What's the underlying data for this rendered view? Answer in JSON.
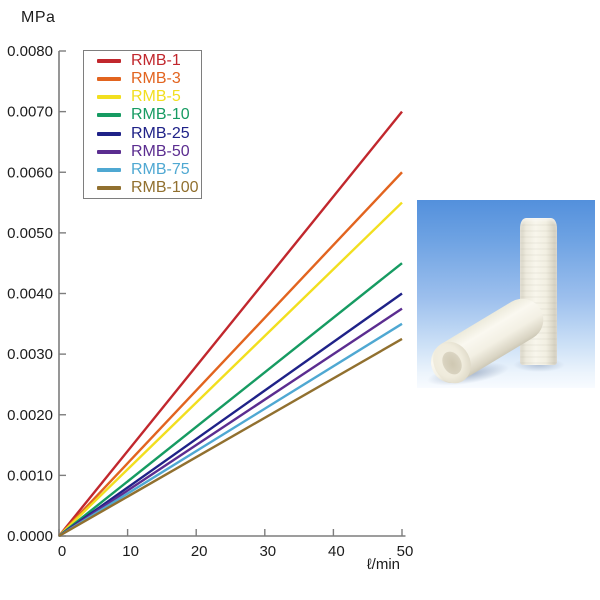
{
  "chart_data": {
    "type": "line",
    "title": "",
    "ylabel": "MPa",
    "xlabel": "ℓ/min",
    "xlim": [
      0,
      50
    ],
    "ylim": [
      0,
      0.008
    ],
    "x_ticks": [
      0,
      10,
      20,
      30,
      40,
      50
    ],
    "y_ticks": [
      "0.0000",
      "0.0010",
      "0.0020",
      "0.0030",
      "0.0040",
      "0.0050",
      "0.0060",
      "0.0070",
      "0.0080"
    ],
    "y_tick_values": [
      0,
      0.001,
      0.002,
      0.003,
      0.004,
      0.005,
      0.006,
      0.007,
      0.008
    ],
    "grid": false,
    "legend_position": "top-left-inside",
    "axis_color": "#7d7d7d",
    "tick_label_color": "#1c1c1c",
    "series": [
      {
        "name": "RMB-1",
        "color": "#c1272d",
        "x": [
          0,
          50
        ],
        "y": [
          0,
          0.007
        ]
      },
      {
        "name": "RMB-3",
        "color": "#e2641f",
        "x": [
          0,
          50
        ],
        "y": [
          0,
          0.006
        ]
      },
      {
        "name": "RMB-5",
        "color": "#f2df1f",
        "x": [
          0,
          50
        ],
        "y": [
          0,
          0.0055
        ]
      },
      {
        "name": "RMB-10",
        "color": "#169b62",
        "x": [
          0,
          50
        ],
        "y": [
          0,
          0.0045
        ]
      },
      {
        "name": "RMB-25",
        "color": "#1f2288",
        "x": [
          0,
          50
        ],
        "y": [
          0,
          0.004
        ]
      },
      {
        "name": "RMB-50",
        "color": "#5b2d90",
        "x": [
          0,
          50
        ],
        "y": [
          0,
          0.00375
        ]
      },
      {
        "name": "RMB-75",
        "color": "#4fa8d2",
        "x": [
          0,
          50
        ],
        "y": [
          0,
          0.0035
        ]
      },
      {
        "name": "RMB-100",
        "color": "#91702f",
        "x": [
          0,
          50
        ],
        "y": [
          0,
          0.00325
        ]
      }
    ]
  }
}
